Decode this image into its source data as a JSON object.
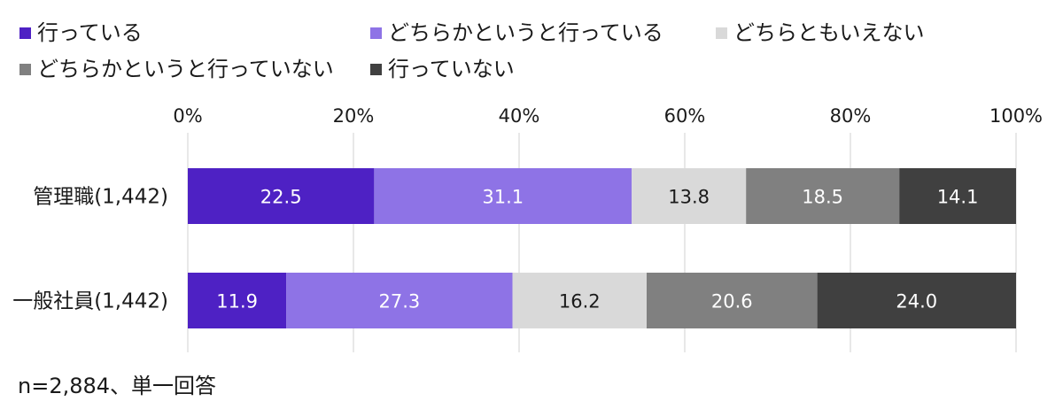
{
  "chart_data": {
    "type": "bar",
    "orientation": "horizontal",
    "stacked": true,
    "xlim": [
      0,
      100
    ],
    "x_ticks": [
      "0%",
      "20%",
      "40%",
      "60%",
      "80%",
      "100%"
    ],
    "categories": [
      "管理職(1,442)",
      "一般社員(1,442)"
    ],
    "series": [
      {
        "name": "行っている",
        "color": "#4e21c4",
        "label_color": "#ffffff",
        "values": [
          22.5,
          11.9
        ],
        "labels": [
          "22.5",
          "11.9"
        ]
      },
      {
        "name": "どちらかというと行っている",
        "color": "#8e73e6",
        "label_color": "#ffffff",
        "values": [
          31.1,
          27.3
        ],
        "labels": [
          "31.1",
          "27.3"
        ]
      },
      {
        "name": "どちらともいえない",
        "color": "#d9d9d9",
        "label_color": "#1a1a1a",
        "values": [
          13.8,
          16.2
        ],
        "labels": [
          "13.8",
          "16.2"
        ]
      },
      {
        "name": "どちらかというと行っていない",
        "color": "#808080",
        "label_color": "#ffffff",
        "values": [
          18.5,
          20.6
        ],
        "labels": [
          "18.5",
          "20.6"
        ]
      },
      {
        "name": "行っていない",
        "color": "#404040",
        "label_color": "#ffffff",
        "values": [
          14.1,
          24.0
        ],
        "labels": [
          "14.1",
          "24.0"
        ]
      }
    ],
    "legend_position": "top-left",
    "grid": true,
    "grid_color": "#d9d9d9"
  },
  "footnote": "n=2,884、単一回答"
}
